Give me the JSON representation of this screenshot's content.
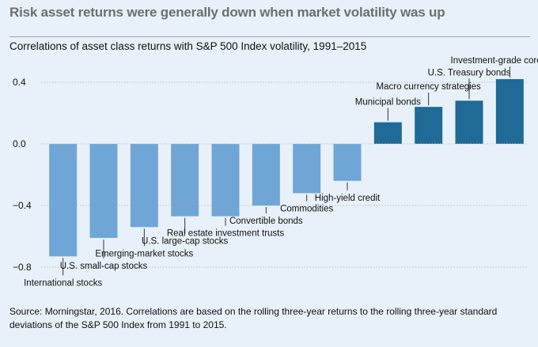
{
  "title": "Risk asset returns were generally down when market volatility was up",
  "chart_data": {
    "type": "bar",
    "subtitle": "Correlations of asset class returns with S&P 500 Index volatility, 1991–2015",
    "categories": [
      "International stocks",
      "U.S. small-cap stocks",
      "Emerging-market stocks",
      "U.S. large-cap stocks",
      "Real estate investment trusts",
      "Convertible bonds",
      "Commodities",
      "High-yield credit",
      "Municipal bonds",
      "Macro currency strategies",
      "U.S. Treasury bonds",
      "Investment-grade core bonds"
    ],
    "values": [
      -0.73,
      -0.61,
      -0.54,
      -0.47,
      -0.47,
      -0.4,
      -0.32,
      -0.24,
      0.14,
      0.24,
      0.28,
      0.42
    ],
    "ylim": [
      -0.85,
      0.5
    ],
    "yticks": [
      0.4,
      0.0,
      -0.4,
      -0.8
    ],
    "ytick_labels": [
      "0.4",
      "0.0",
      "−0.4",
      "−0.8"
    ],
    "xlabel": "",
    "ylabel": "",
    "negative_color": "#6fa6d6",
    "positive_color": "#1f6a97"
  },
  "source": "Source: Morningstar, 2016. Correlations are based on the rolling three-year returns to the rolling three-year standard deviations of the S&P 500 Index from 1991 to 2015."
}
